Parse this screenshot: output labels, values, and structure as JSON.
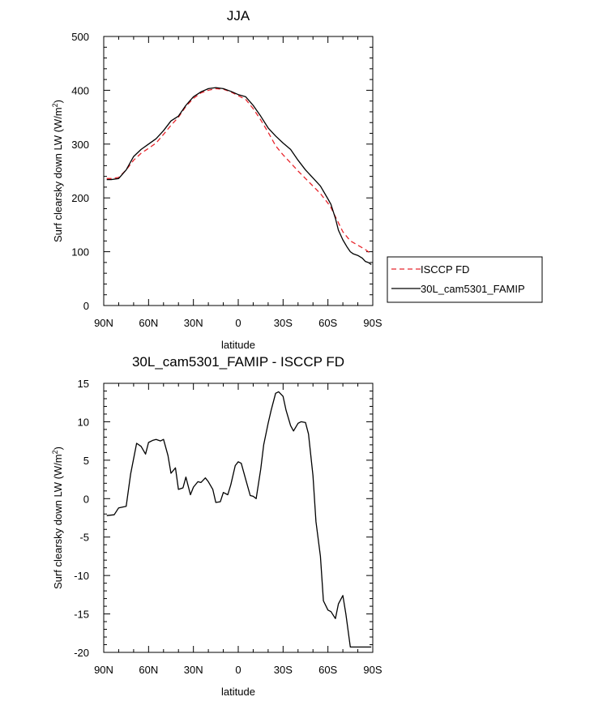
{
  "chart_data": [
    {
      "type": "line",
      "title": "JJA",
      "xlabel": "latitude",
      "ylabel_main": "Surf clearsky down LW (W/m",
      "ylabel_sup": "2",
      "ylabel_tail": ")",
      "xlim": [
        90,
        -90
      ],
      "ylim": [
        0,
        500
      ],
      "x_ticks": [
        {
          "value": 90,
          "label": "90N"
        },
        {
          "value": 60,
          "label": "60N"
        },
        {
          "value": 30,
          "label": "30N"
        },
        {
          "value": 0,
          "label": "0"
        },
        {
          "value": -30,
          "label": "30S"
        },
        {
          "value": -60,
          "label": "60S"
        },
        {
          "value": -90,
          "label": "90S"
        }
      ],
      "y_ticks": [
        0,
        100,
        200,
        300,
        400,
        500
      ],
      "legend": {
        "position": "right"
      },
      "series": [
        {
          "name": "ISCCP FD",
          "color": "#e8262d",
          "dash": "6,4",
          "x": [
            88,
            85,
            80,
            75,
            70,
            65,
            60,
            55,
            50,
            45,
            40,
            35,
            30,
            25,
            20,
            15,
            10,
            5,
            0,
            -5,
            -10,
            -15,
            -20,
            -25,
            -30,
            -35,
            -40,
            -45,
            -50,
            -55,
            -60,
            -62,
            -65,
            -70,
            -75,
            -80,
            -85,
            -89
          ],
          "y": [
            236,
            236,
            238,
            252,
            270,
            283,
            292,
            302,
            318,
            335,
            350,
            370,
            385,
            395,
            400,
            403,
            402,
            397,
            390,
            383,
            366,
            345,
            322,
            297,
            280,
            265,
            250,
            236,
            222,
            208,
            190,
            182,
            165,
            137,
            120,
            112,
            104,
            96
          ]
        },
        {
          "name": "30L_cam5301_FAMIP",
          "color": "#000000",
          "dash": "",
          "x": [
            88,
            85,
            80,
            75,
            70,
            65,
            60,
            55,
            50,
            45,
            40,
            35,
            30,
            25,
            20,
            15,
            10,
            5,
            0,
            -5,
            -10,
            -15,
            -20,
            -25,
            -30,
            -35,
            -40,
            -45,
            -50,
            -55,
            -60,
            -62,
            -65,
            -67,
            -70,
            -73,
            -75,
            -77,
            -80,
            -83,
            -85,
            -87,
            -89
          ],
          "y": [
            234,
            234,
            236,
            252,
            277,
            290,
            300,
            310,
            325,
            343,
            352,
            372,
            388,
            397,
            403,
            405,
            403,
            398,
            392,
            388,
            372,
            352,
            330,
            315,
            302,
            290,
            270,
            252,
            237,
            222,
            198,
            188,
            162,
            140,
            122,
            108,
            100,
            96,
            93,
            88,
            82,
            80,
            76
          ]
        }
      ]
    },
    {
      "type": "line",
      "title": "30L_cam5301_FAMIP - ISCCP FD",
      "xlabel": "latitude",
      "ylabel_main": "Surf clearsky down LW (W/m",
      "ylabel_sup": "2",
      "ylabel_tail": ")",
      "xlim": [
        90,
        -90
      ],
      "ylim": [
        -20,
        15
      ],
      "x_ticks": [
        {
          "value": 90,
          "label": "90N"
        },
        {
          "value": 60,
          "label": "60N"
        },
        {
          "value": 30,
          "label": "30N"
        },
        {
          "value": 0,
          "label": "0"
        },
        {
          "value": -30,
          "label": "30S"
        },
        {
          "value": -60,
          "label": "60S"
        },
        {
          "value": -90,
          "label": "90S"
        }
      ],
      "y_ticks": [
        -20,
        -15,
        -10,
        -5,
        0,
        5,
        10,
        15
      ],
      "series": [
        {
          "name": "",
          "color": "#000000",
          "dash": "",
          "x": [
            88,
            83,
            80,
            75,
            72,
            68,
            65,
            62,
            60,
            57,
            55,
            52,
            50,
            47,
            45,
            42,
            40,
            37,
            35,
            32,
            30,
            27,
            25,
            22,
            20,
            17,
            15,
            12,
            10,
            7,
            5,
            2,
            0,
            -2,
            -5,
            -8,
            -10,
            -12,
            -15,
            -17,
            -20,
            -22,
            -25,
            -27,
            -30,
            -32,
            -35,
            -37,
            -40,
            -42,
            -45,
            -47,
            -50,
            -52,
            -55,
            -57,
            -60,
            -62,
            -65,
            -67,
            -70,
            -72,
            -75,
            -77,
            -80,
            -82,
            -85,
            -87,
            -89
          ],
          "y": [
            -2.2,
            -2.1,
            -1.2,
            -1.0,
            3.2,
            7.2,
            6.8,
            5.8,
            7.3,
            7.6,
            7.7,
            7.5,
            7.7,
            5.6,
            3.3,
            4.0,
            1.2,
            1.4,
            2.8,
            0.5,
            1.5,
            2.2,
            2.1,
            2.7,
            2.2,
            1.2,
            -0.5,
            -0.4,
            0.8,
            0.5,
            1.8,
            4.3,
            4.8,
            4.6,
            2.5,
            0.4,
            0.3,
            0.0,
            3.8,
            7.0,
            9.8,
            11.5,
            13.7,
            13.9,
            13.3,
            11.5,
            9.5,
            8.8,
            9.8,
            10.0,
            9.9,
            8.4,
            3.0,
            -3.0,
            -7.5,
            -13.3,
            -14.5,
            -14.7,
            -15.6,
            -13.7,
            -12.6,
            -15.0,
            -19.3,
            -19.3,
            -19.3,
            -19.3,
            -19.3,
            -19.3,
            -19.3
          ]
        }
      ]
    }
  ]
}
